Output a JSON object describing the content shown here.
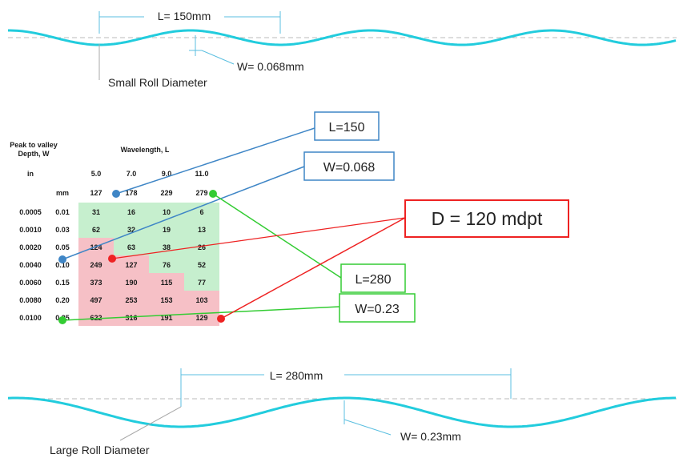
{
  "top_section": {
    "length_label": "L= 150mm",
    "width_label": "W= 0.068mm",
    "caption": "Small Roll Diameter"
  },
  "bottom_section": {
    "length_label": "L= 280mm",
    "width_label": "W= 0.23mm",
    "caption": "Large Roll Diameter"
  },
  "table": {
    "depth_header_line1": "Peak to valley",
    "depth_header_line2": "Depth, W",
    "wavelength_header": "Wavelength, L",
    "unit_in": "in",
    "unit_mm": "mm",
    "col_in": [
      "5.0",
      "7.0",
      "9.0",
      "11.0"
    ],
    "col_mm": [
      "127",
      "178",
      "229",
      "279"
    ],
    "rows": [
      {
        "in": "0.0005",
        "mm": "0.01",
        "cells": [
          "31",
          "16",
          "10",
          "6"
        ],
        "status": [
          "green",
          "green",
          "green",
          "green"
        ]
      },
      {
        "in": "0.0010",
        "mm": "0.03",
        "cells": [
          "62",
          "32",
          "19",
          "13"
        ],
        "status": [
          "green",
          "green",
          "green",
          "green"
        ]
      },
      {
        "in": "0.0020",
        "mm": "0.05",
        "cells": [
          "124",
          "63",
          "38",
          "26"
        ],
        "status": [
          "red",
          "green",
          "green",
          "green"
        ]
      },
      {
        "in": "0.0040",
        "mm": "0.10",
        "cells": [
          "249",
          "127",
          "76",
          "52"
        ],
        "status": [
          "red",
          "red",
          "green",
          "green"
        ]
      },
      {
        "in": "0.0060",
        "mm": "0.15",
        "cells": [
          "373",
          "190",
          "115",
          "77"
        ],
        "status": [
          "red",
          "red",
          "red",
          "green"
        ]
      },
      {
        "in": "0.0080",
        "mm": "0.20",
        "cells": [
          "497",
          "253",
          "153",
          "103"
        ],
        "status": [
          "red",
          "red",
          "red",
          "red"
        ]
      },
      {
        "in": "0.0100",
        "mm": "0.25",
        "cells": [
          "622",
          "316",
          "191",
          "129"
        ],
        "status": [
          "red",
          "red",
          "red",
          "red"
        ]
      }
    ]
  },
  "callouts": {
    "l150": "L=150",
    "w0068": "W=0.068",
    "d120": "D = 120 mdpt",
    "l280": "L=280",
    "w023": "W=0.23"
  },
  "colors": {
    "wave": "#22ccdd",
    "dim_line": "#5bbfe0",
    "blue": "#3f86c6",
    "green": "#33cc33",
    "red": "#ee2222",
    "cell_green": "#c6efce",
    "cell_red": "#f6c0c6"
  }
}
